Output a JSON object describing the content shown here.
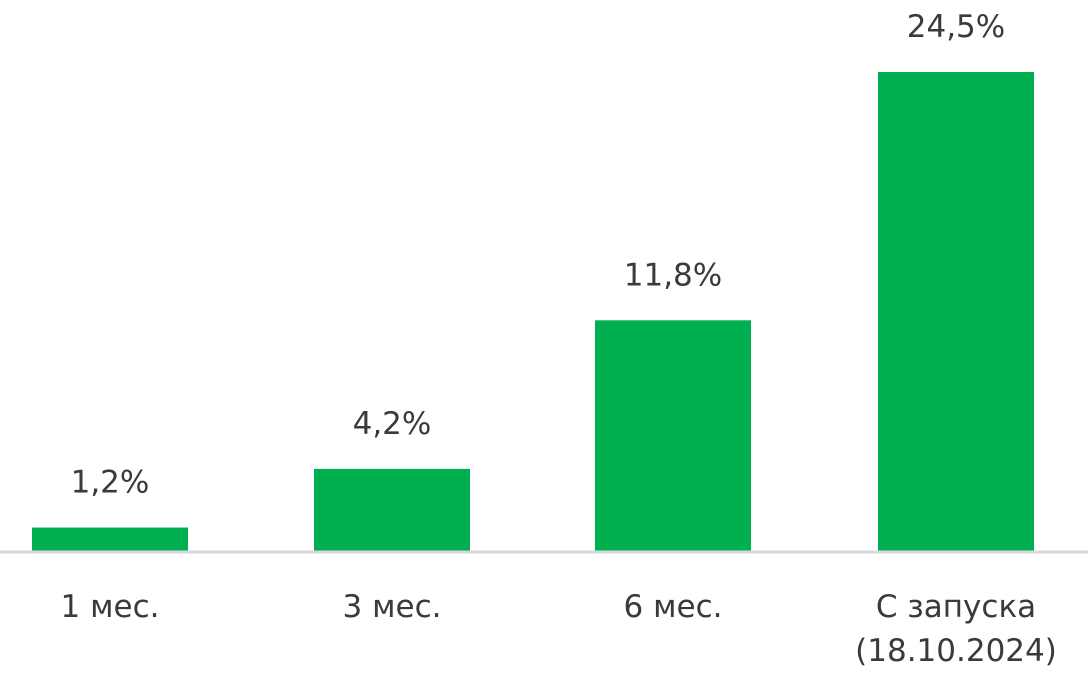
{
  "chart_data": {
    "type": "bar",
    "categories": [
      [
        "1 мес."
      ],
      [
        "3 мес."
      ],
      [
        "6 мес."
      ],
      [
        "С запуска",
        "(18.10.2024)"
      ]
    ],
    "values": [
      1.2,
      4.2,
      11.8,
      24.5
    ],
    "value_labels": [
      "1,2%",
      "4,2%",
      "11,8%",
      "24,5%"
    ],
    "ylim": [
      0,
      24.5
    ],
    "grid": false,
    "legend": "none",
    "colors": {
      "bar": "#00b050",
      "axis": "#d9d9d9",
      "text": "#3a3a3a"
    }
  }
}
